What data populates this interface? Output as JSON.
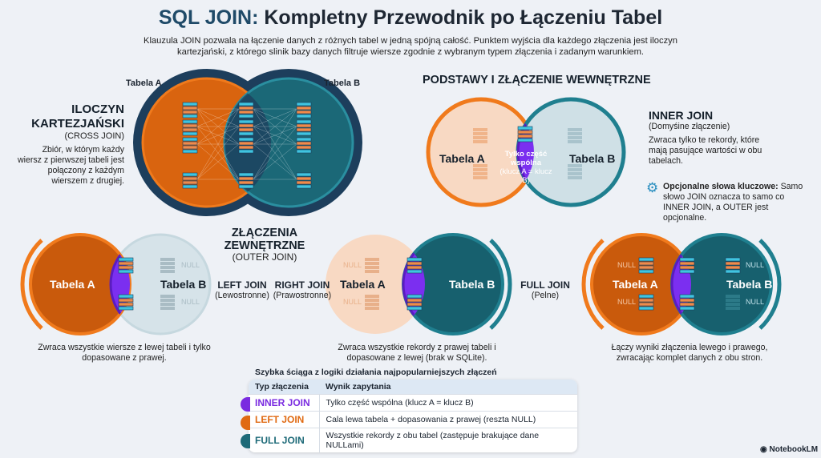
{
  "header": {
    "title_hl": "SQL JOIN:",
    "title_rest": " Kompletny Przewodnik po Łączeniu Tabel",
    "subtitle": "Klauzula JOIN pozwala na łączenie danych z różnych tabel w jedną spójną całość. Punktem wyjścia dla każdego złączenia jest iloczyn kartezjański, z którego slinik bazy danych filtruje wiersze zgodnie z wybranym typem złączenia i zadanym warunkiem."
  },
  "cross": {
    "title1": "ILOCZYN",
    "title2": "KARTEZJAŃSKI",
    "sub": "(CROSS JOIN)",
    "desc": "Zbiór, w którym każdy wiersz z pierwszej tabeli jest połączony z każdym wierszem z drugiej.",
    "table_a": "Tabela A",
    "table_b": "Tabela B"
  },
  "inner": {
    "section": "PODSTAWY I ZŁĄCZENIE WEWNĘTRZNE",
    "table_a": "Tabela A",
    "table_b": "Tabela B",
    "center": "Tylko część wspólna",
    "center_sub": "(klucz A = klucz B)",
    "title": "INNER JOIN",
    "sub": "(Domyśine złączenie)",
    "desc": "Zwraca tylko te rekordy, które mają pasujące wartości w obu tabelach.",
    "note_bold": "Opcjonalne słowa kluczowe:",
    "note": "Samo słowo JOIN oznacza to samo co INNER JOIN, a OUTER jest opcjonalne.",
    "note_icon": "gear-icon"
  },
  "outer": {
    "section": "ZŁĄCZENIA ZEWNĘTRZNE",
    "section_sub": "(OUTER JOIN)",
    "null": "NULL",
    "left": {
      "title": "LEFT JOIN",
      "sub": "(Lewostronne)",
      "table_a": "Tabela A",
      "table_b": "Tabela B",
      "desc": "Zwraca wszystkie wiersze z lewej tabeli i tylko dopasowane z prawej."
    },
    "right": {
      "title": "RIGHT JOIN",
      "sub": "(Prawostronne)",
      "table_a": "Tabela A",
      "table_b": "Tabela B",
      "desc": "Zwraca wszystkie rekordy z prawej tabeli i dopasowane z lewej (brak w SQLite)."
    },
    "full": {
      "title": "FULL JOIN",
      "sub": "(Pelne)",
      "table_a": "Tabela A",
      "table_b": "Tabela B",
      "desc": "Łączy wyniki złączenia lewego i prawego, zwracając komplet danych z obu stron."
    }
  },
  "cheatsheet": {
    "title": "Szybka ściąga z logiki działania najpopularniejszych złączeń",
    "col1": "Typ złączenia",
    "col2": "Wynik zapytania",
    "rows": [
      {
        "type": "INNER JOIN",
        "result": "Tylko część wspólna (klucz A = klucz B)",
        "color": "#7a2be0"
      },
      {
        "type": "LEFT JOIN",
        "result": "Cala lewa tabela + dopasowania z prawej (reszta NULL)",
        "color": "#e06a12"
      },
      {
        "type": "FULL JOIN",
        "result": "Wszystkie rekordy z obu tabel (zastępuje brakujące dane NULLami)",
        "color": "#1d6a78"
      }
    ]
  },
  "brand": "NotebookLM",
  "colors": {
    "orange": "#d9640f",
    "teal": "#1b6877",
    "purple": "#7b2ff0",
    "navy": "#1d3e5c"
  }
}
